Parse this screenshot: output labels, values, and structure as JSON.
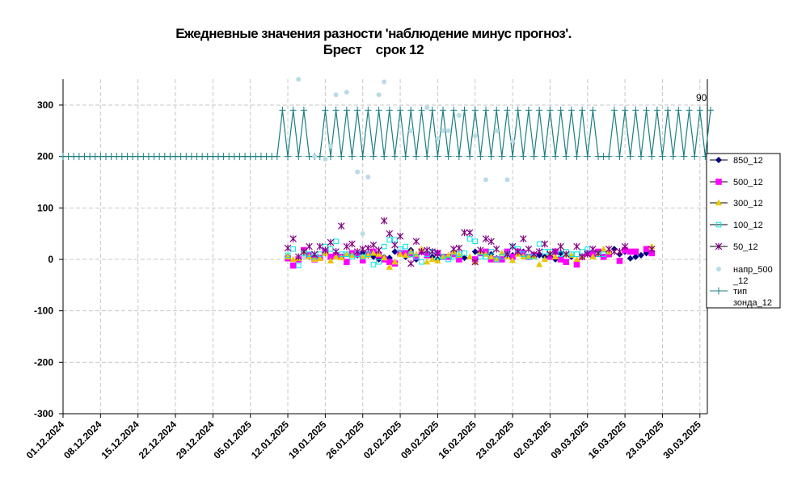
{
  "chart_data": {
    "type": "line",
    "title_line1": "Ежедневные значения разности 'наблюдение минус прогноз'.",
    "title_line2": "Брест    срок 12",
    "xlabel": "",
    "ylabel": "",
    "ylim": [
      -300,
      350
    ],
    "yticks": [
      "300",
      "200",
      "100",
      "0",
      "-100",
      "-200",
      "-300"
    ],
    "xticks": [
      "01.12.2024",
      "08.12.2024",
      "15.12.2024",
      "22.12.2024",
      "29.12.2024",
      "05.01.2025",
      "12.01.2025",
      "19.01.2025",
      "26.01.2025",
      "02.02.2025",
      "09.02.2025",
      "16.02.2025",
      "23.02.2025",
      "02.03.2025",
      "09.03.2025",
      "16.03.2025",
      "23.03.2025",
      "30.03.2025"
    ],
    "grid": true,
    "legend_position": "right",
    "annotation": "90",
    "colors": {
      "s850": "#000080",
      "s500": "#ff00ff",
      "s300": "#e6c800",
      "s100": "#00e5e5",
      "s50": "#800080",
      "wind": "#b8dce6",
      "probe": "#1a7f80"
    },
    "series": [
      {
        "key": "s850",
        "name": "850_12",
        "marker": "diamond",
        "start_day": 42,
        "values": [
          5,
          null,
          null,
          15,
          5,
          2,
          null,
          12,
          3,
          10,
          5,
          null,
          null,
          8,
          12,
          8,
          5,
          0,
          4,
          3,
          15,
          null,
          5,
          18,
          0,
          null,
          10,
          5,
          0,
          null,
          5,
          12,
          2,
          3,
          null,
          15,
          null,
          null,
          10,
          2,
          null,
          10,
          8,
          12,
          15,
          5,
          null,
          8,
          5,
          10,
          0,
          12,
          null,
          5,
          null,
          null,
          null,
          null,
          null,
          5,
          15,
          20,
          10,
          15,
          2,
          5,
          8,
          12,
          15
        ]
      },
      {
        "key": "s500",
        "name": "500_12",
        "marker": "square",
        "start_day": 42,
        "values": [
          2,
          -12,
          0,
          18,
          8,
          0,
          3,
          15,
          5,
          8,
          5,
          -5,
          12,
          10,
          -2,
          10,
          15,
          8,
          0,
          -5,
          -8,
          12,
          12,
          10,
          5,
          15,
          8,
          null,
          12,
          5,
          5,
          10,
          0,
          null,
          null,
          0,
          12,
          15,
          0,
          0,
          0,
          15,
          5,
          15,
          12,
          5,
          8,
          null,
          null,
          5,
          15,
          0,
          -5,
          null,
          -10,
          5,
          12,
          10,
          15,
          5,
          10,
          null,
          -3,
          18,
          15,
          15,
          null,
          20,
          12
        ]
      },
      {
        "key": "s300",
        "name": "300_12",
        "marker": "triangle",
        "start_day": 42,
        "values": [
          5,
          0,
          2,
          15,
          5,
          0,
          2,
          12,
          -3,
          5,
          3,
          10,
          8,
          null,
          5,
          8,
          12,
          10,
          3,
          -15,
          -5,
          10,
          8,
          15,
          10,
          20,
          -5,
          0,
          -3,
          5,
          8,
          15,
          8,
          null,
          5,
          -5,
          15,
          10,
          5,
          0,
          12,
          5,
          -2,
          10,
          5,
          5,
          5,
          -10,
          0,
          12,
          5,
          null,
          10,
          8,
          0,
          5,
          null,
          5,
          12,
          20,
          15,
          null,
          null,
          null,
          null,
          null,
          null,
          null,
          25
        ]
      },
      {
        "key": "s100",
        "name": "100_12",
        "marker": "square-open",
        "start_day": 42,
        "values": [
          8,
          20,
          -12,
          12,
          10,
          5,
          10,
          25,
          20,
          35,
          10,
          10,
          5,
          10,
          5,
          10,
          -10,
          -5,
          25,
          38,
          38,
          20,
          25,
          10,
          5,
          -5,
          10,
          15,
          5,
          5,
          0,
          5,
          10,
          12,
          40,
          35,
          5,
          5,
          15,
          0,
          5,
          10,
          25,
          20,
          10,
          5,
          5,
          30,
          15,
          15,
          null,
          10,
          15,
          10,
          10,
          15,
          20,
          null,
          10,
          10,
          null,
          null,
          null,
          null,
          null,
          null,
          null,
          null,
          null
        ]
      },
      {
        "key": "s50",
        "name": "50_12",
        "marker": "star",
        "start_day": 42,
        "values": [
          22,
          40,
          5,
          15,
          25,
          10,
          25,
          18,
          33,
          15,
          65,
          25,
          30,
          15,
          20,
          22,
          28,
          18,
          75,
          50,
          28,
          45,
          null,
          -8,
          35,
          15,
          18,
          15,
          12,
          null,
          null,
          20,
          22,
          52,
          52,
          -5,
          18,
          40,
          35,
          20,
          null,
          10,
          25,
          15,
          40,
          20,
          10,
          15,
          30,
          10,
          15,
          25,
          10,
          null,
          25,
          5,
          10,
          20,
          12,
          null,
          20,
          15,
          15,
          25,
          null,
          null,
          null,
          null,
          20
        ]
      },
      {
        "key": "wind",
        "name": "напр_500_12",
        "marker": "circle",
        "start_day": 42,
        "values": [
          5,
          null,
          350,
          5,
          null,
          200,
          null,
          195,
          220,
          320,
          null,
          325,
          null,
          170,
          50,
          160,
          null,
          320,
          345,
          null,
          null,
          null,
          null,
          250,
          null,
          null,
          295,
          null,
          235,
          250,
          250,
          null,
          280,
          null,
          null,
          240,
          null,
          155,
          null,
          250,
          null,
          155,
          230,
          null,
          null,
          null,
          null,
          null,
          null,
          null,
          null,
          null,
          null,
          null,
          null,
          null,
          null,
          null,
          null,
          null,
          null,
          null,
          null,
          null,
          null,
          null,
          null,
          null,
          null
        ]
      },
      {
        "key": "probe",
        "name": "тип зонда_12",
        "marker": "plus",
        "start_day": 0,
        "values": [
          200,
          200,
          200,
          200,
          200,
          200,
          200,
          200,
          200,
          200,
          200,
          200,
          200,
          200,
          200,
          200,
          200,
          200,
          200,
          200,
          200,
          200,
          200,
          200,
          200,
          200,
          200,
          200,
          200,
          200,
          200,
          200,
          200,
          200,
          200,
          200,
          200,
          200,
          200,
          200,
          200,
          290,
          200,
          290,
          200,
          290,
          200,
          200,
          200,
          290,
          200,
          290,
          200,
          290,
          200,
          290,
          200,
          290,
          200,
          290,
          200,
          290,
          200,
          290,
          200,
          290,
          200,
          290,
          200,
          290,
          200,
          290,
          200,
          290,
          200,
          290,
          200,
          290,
          200,
          290,
          200,
          290,
          200,
          290,
          200,
          290,
          200,
          290,
          200,
          290,
          200,
          290,
          200,
          290,
          200,
          290,
          200,
          290,
          200,
          290,
          200,
          200,
          200,
          290,
          200,
          290,
          200,
          290,
          200,
          290,
          200,
          290,
          200,
          290,
          200,
          290,
          200,
          290,
          200,
          290,
          200,
          290
        ]
      }
    ]
  }
}
